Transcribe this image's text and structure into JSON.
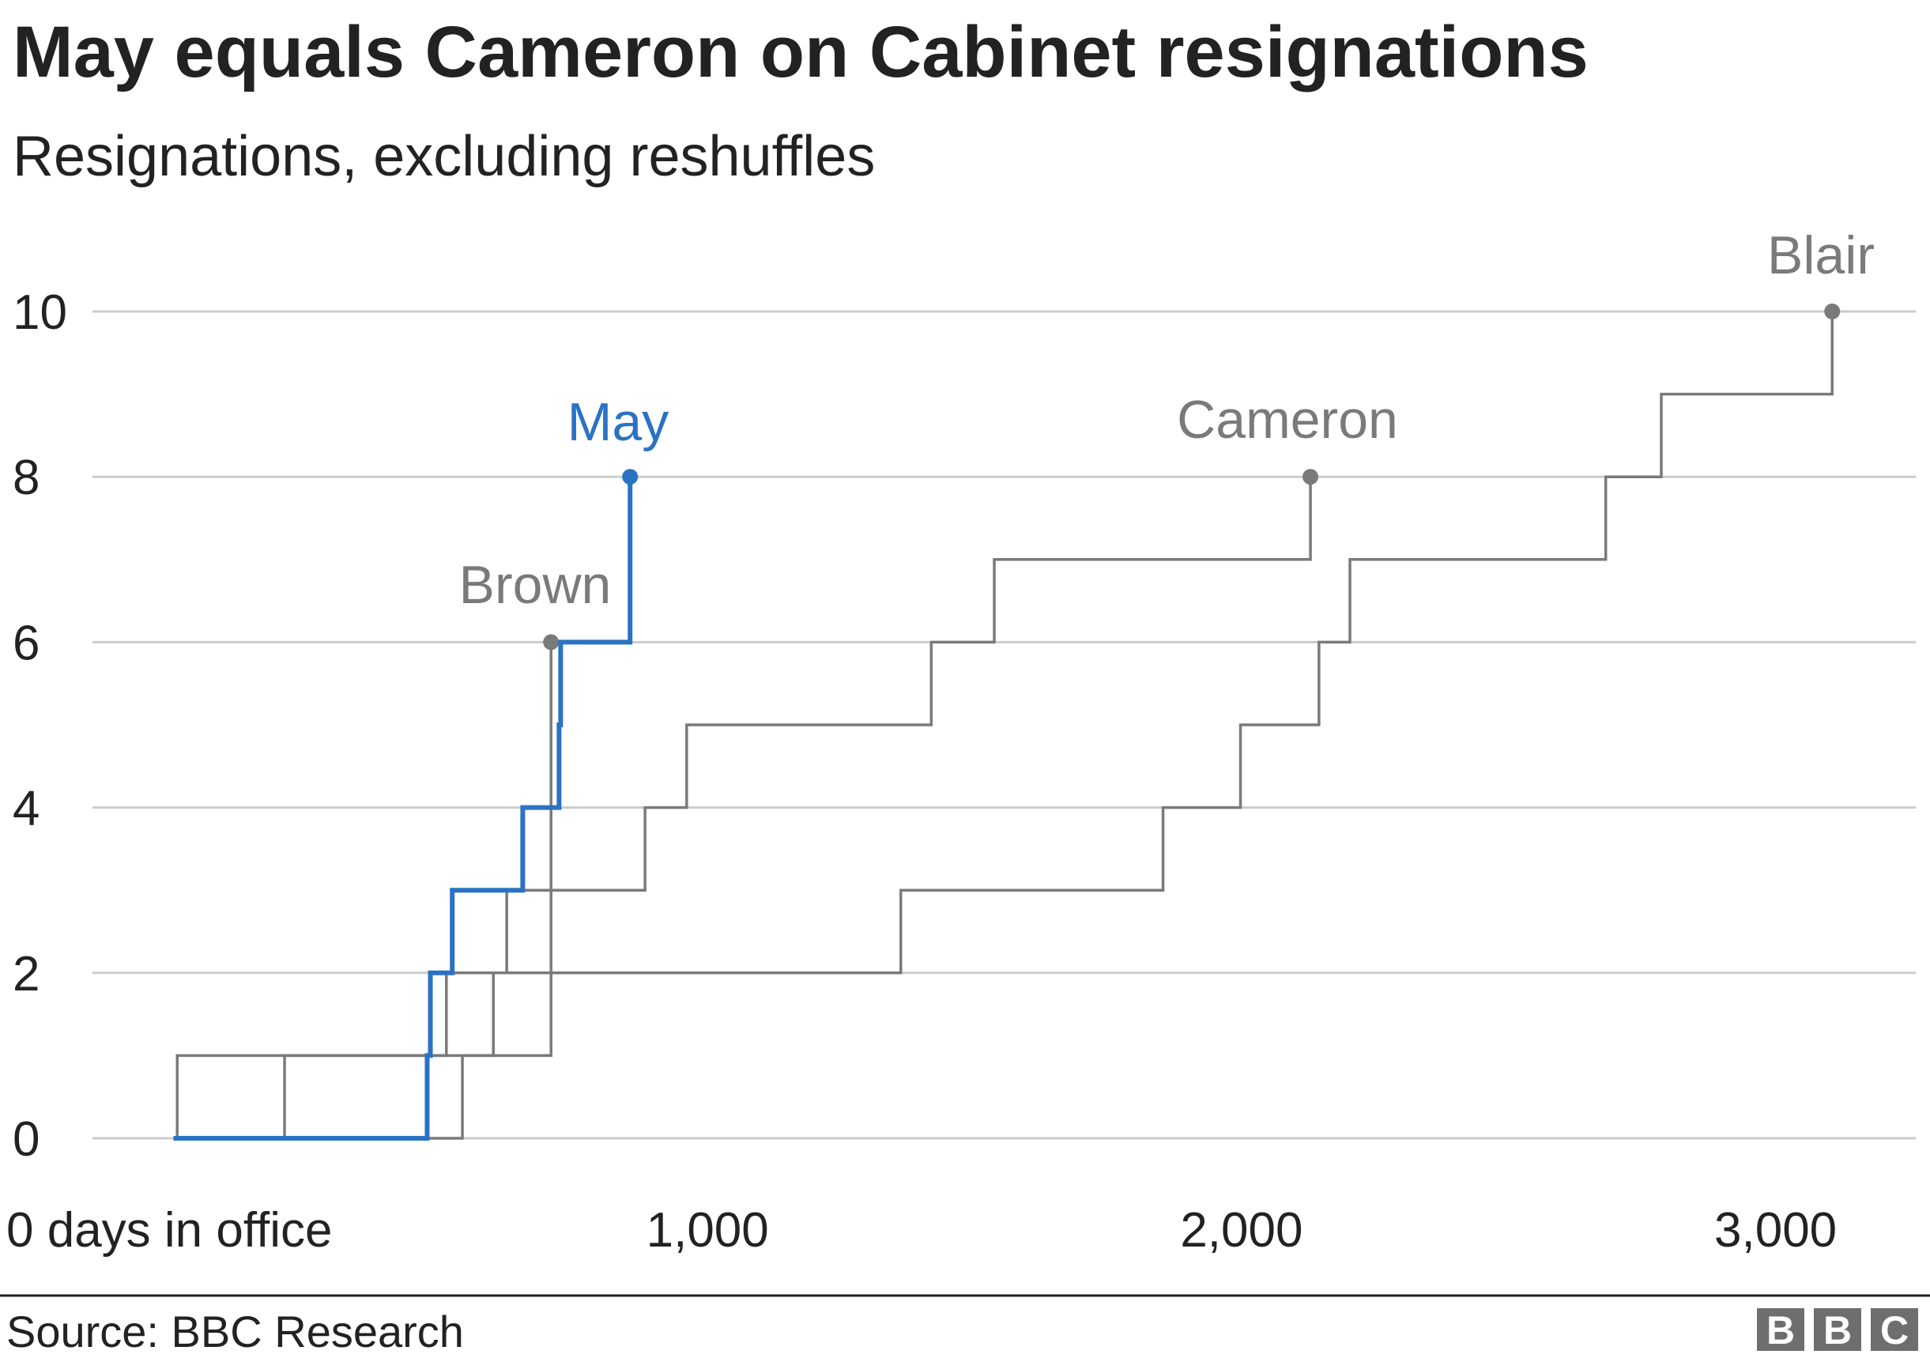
{
  "chart_data": {
    "type": "line",
    "step": true,
    "title": "May equals Cameron on Cabinet resignations",
    "subtitle": "Resignations, excluding reshuffles",
    "xlabel": "days in office",
    "x_ticks": [
      0,
      1000,
      2000,
      3000
    ],
    "x_tick_labels": [
      "0 days in office",
      "1,000",
      "2,000",
      "3,000"
    ],
    "y_ticks": [
      0,
      2,
      4,
      6,
      8,
      10
    ],
    "y_tick_labels": [
      "0",
      "2",
      "4",
      "6",
      "8",
      "10"
    ],
    "xlim": [
      0,
      3260
    ],
    "ylim": [
      0,
      10
    ],
    "grid": true,
    "series": [
      {
        "name": "Blair",
        "color": "#7a7a7a",
        "end_marker": true,
        "steps": [
          [
            7,
            1
          ],
          [
            511,
            2
          ],
          [
            1362,
            3
          ],
          [
            1853,
            4
          ],
          [
            1998,
            5
          ],
          [
            2145,
            6
          ],
          [
            2203,
            7
          ],
          [
            2682,
            8
          ],
          [
            2786,
            9
          ],
          [
            3106,
            10
          ]
        ]
      },
      {
        "name": "Cameron",
        "color": "#7a7a7a",
        "end_marker": true,
        "steps": [
          [
            208,
            1
          ],
          [
            599,
            2
          ],
          [
            624,
            3
          ],
          [
            883,
            4
          ],
          [
            961,
            5
          ],
          [
            1419,
            6
          ],
          [
            1537,
            7
          ],
          [
            2129,
            8
          ]
        ]
      },
      {
        "name": "Brown",
        "color": "#7a7a7a",
        "end_marker": true,
        "steps": [
          [
            541,
            1
          ],
          [
            707,
            6
          ]
        ]
      },
      {
        "name": "May",
        "color": "#2b72c3",
        "end_marker": true,
        "steps": [
          [
            475,
            1
          ],
          [
            481,
            2
          ],
          [
            522,
            3
          ],
          [
            654,
            4
          ],
          [
            722,
            5
          ],
          [
            725,
            6
          ],
          [
            855,
            8
          ]
        ]
      }
    ],
    "source": "Source: BBC Research"
  },
  "logo": "BBC"
}
